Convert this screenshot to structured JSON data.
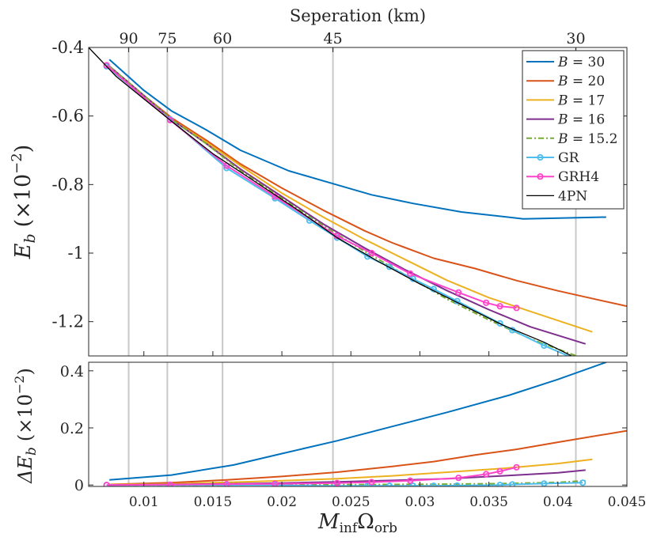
{
  "chart_data": [
    {
      "type": "line",
      "panel": "top",
      "top_axis_title": "Seperation (km)",
      "top_ticks": [
        "90",
        "75",
        "60",
        "45",
        "30"
      ],
      "top_tick_x": [
        0.0089,
        0.0117,
        0.0157,
        0.0237,
        0.0413
      ],
      "ylabel_main": "E",
      "ylabel_sub": "b",
      "ylabel_scale": "(×10",
      "ylabel_exp": "−2",
      "ylabel_close": ")",
      "xlim": [
        0.006,
        0.045
      ],
      "ylim": [
        -1.3,
        -0.4
      ],
      "y_ticks": [
        -0.4,
        -0.6,
        -0.8,
        -1.0,
        -1.2
      ],
      "y_tick_labels": [
        "-0.4",
        "-0.6",
        "-0.8",
        "-1",
        "-1.2"
      ],
      "legend_position": "top-right",
      "series": [
        {
          "name": "B = 30",
          "label_main": "B",
          "label_rest": " = 30",
          "color": "#0072BD",
          "style": "solid",
          "marker": "none",
          "x": [
            0.0075,
            0.01,
            0.012,
            0.0145,
            0.017,
            0.0205,
            0.0235,
            0.0265,
            0.0295,
            0.033,
            0.0375,
            0.0435
          ],
          "y": [
            -0.435,
            -0.525,
            -0.585,
            -0.64,
            -0.7,
            -0.76,
            -0.795,
            -0.83,
            -0.855,
            -0.88,
            -0.9,
            -0.895
          ]
        },
        {
          "name": "B = 20",
          "label_main": "B",
          "label_rest": " = 20",
          "color": "#D95319",
          "style": "solid",
          "marker": "none",
          "x": [
            0.0075,
            0.01,
            0.012,
            0.0145,
            0.017,
            0.02,
            0.023,
            0.026,
            0.028,
            0.031,
            0.034,
            0.037,
            0.04,
            0.045
          ],
          "y": [
            -0.455,
            -0.54,
            -0.605,
            -0.67,
            -0.74,
            -0.81,
            -0.875,
            -0.935,
            -0.97,
            -1.015,
            -1.045,
            -1.08,
            -1.11,
            -1.155
          ]
        },
        {
          "name": "B = 17",
          "label_main": "B",
          "label_rest": " = 17",
          "color": "#EDB120",
          "style": "solid",
          "marker": "none",
          "x": [
            0.0075,
            0.01,
            0.012,
            0.0145,
            0.017,
            0.02,
            0.023,
            0.026,
            0.029,
            0.032,
            0.035,
            0.038,
            0.0425
          ],
          "y": [
            -0.455,
            -0.54,
            -0.61,
            -0.675,
            -0.745,
            -0.825,
            -0.895,
            -0.96,
            -1.02,
            -1.08,
            -1.13,
            -1.17,
            -1.23
          ]
        },
        {
          "name": "B = 16",
          "label_main": "B",
          "label_rest": " = 16",
          "color": "#7E2F8E",
          "style": "solid",
          "marker": "none",
          "x": [
            0.0075,
            0.01,
            0.012,
            0.0145,
            0.017,
            0.02,
            0.023,
            0.026,
            0.029,
            0.032,
            0.035,
            0.038,
            0.042
          ],
          "y": [
            -0.455,
            -0.54,
            -0.61,
            -0.68,
            -0.755,
            -0.835,
            -0.915,
            -0.985,
            -1.05,
            -1.11,
            -1.165,
            -1.215,
            -1.265
          ]
        },
        {
          "name": "B = 15.2",
          "label_main": "B",
          "label_rest": " = 15.2",
          "color": "#77AC30",
          "style": "dashdot",
          "marker": "none",
          "x": [
            0.0075,
            0.01,
            0.012,
            0.0145,
            0.017,
            0.02,
            0.023,
            0.026,
            0.029,
            0.032,
            0.035,
            0.038,
            0.042
          ],
          "y": [
            -0.455,
            -0.54,
            -0.61,
            -0.68,
            -0.76,
            -0.84,
            -0.92,
            -0.995,
            -1.065,
            -1.135,
            -1.195,
            -1.25,
            -1.31
          ]
        },
        {
          "name": "GR",
          "label_main": "GR",
          "label_rest": "",
          "color": "#4DBEEE",
          "style": "solid",
          "marker": "circle",
          "x": [
            0.0073,
            0.0119,
            0.016,
            0.0195,
            0.022,
            0.024,
            0.0262,
            0.0278,
            0.0295,
            0.031,
            0.0327,
            0.0358,
            0.0367,
            0.039,
            0.0418
          ],
          "y": [
            -0.455,
            -0.61,
            -0.752,
            -0.84,
            -0.905,
            -0.955,
            -1.01,
            -1.04,
            -1.075,
            -1.105,
            -1.14,
            -1.205,
            -1.225,
            -1.27,
            -1.318
          ]
        },
        {
          "name": "GRH4",
          "label_main": "GRH4",
          "label_rest": "",
          "color": "#FF44CC",
          "style": "solid",
          "marker": "circle",
          "x": [
            0.0073,
            0.0119,
            0.016,
            0.0195,
            0.024,
            0.0265,
            0.0293,
            0.0328,
            0.0348,
            0.0358,
            0.037
          ],
          "y": [
            -0.452,
            -0.612,
            -0.745,
            -0.835,
            -0.95,
            -1.0,
            -1.06,
            -1.115,
            -1.145,
            -1.155,
            -1.16
          ]
        },
        {
          "name": "4PN",
          "label_main": "4PN",
          "label_rest": "",
          "color": "#000000",
          "style": "solid",
          "marker": "none",
          "x": [
            0.006,
            0.008,
            0.01,
            0.012,
            0.015,
            0.018,
            0.021,
            0.024,
            0.027,
            0.03,
            0.033,
            0.036,
            0.039,
            0.042
          ],
          "y": [
            -0.4,
            -0.485,
            -0.55,
            -0.615,
            -0.71,
            -0.79,
            -0.87,
            -0.955,
            -1.025,
            -1.09,
            -1.15,
            -1.21,
            -1.26,
            -1.32
          ]
        }
      ]
    },
    {
      "type": "line",
      "panel": "bottom",
      "ylabel_main": "ΔE",
      "ylabel_sub": "b",
      "ylabel_scale": "(×10",
      "ylabel_exp": "−2",
      "ylabel_close": ")",
      "xlabel_main": "M",
      "xlabel_sub1": "inf",
      "xlabel_omega": "Ω",
      "xlabel_sub2": "orb",
      "xlim": [
        0.006,
        0.045
      ],
      "ylim": [
        -0.005,
        0.43
      ],
      "x_ticks": [
        0.01,
        0.015,
        0.02,
        0.025,
        0.03,
        0.035,
        0.04,
        0.045
      ],
      "x_tick_labels": [
        "0.01",
        "0.015",
        "0.02",
        "0.025",
        "0.03",
        "0.035",
        "0.04",
        "0.045"
      ],
      "y_ticks": [
        0,
        0.2,
        0.4
      ],
      "y_tick_labels": [
        "0",
        "0.2",
        "0.4"
      ],
      "series": [
        {
          "name": "B = 30",
          "color": "#0072BD",
          "style": "solid",
          "marker": "none",
          "x": [
            0.0075,
            0.012,
            0.0165,
            0.02,
            0.024,
            0.028,
            0.032,
            0.0365,
            0.04,
            0.0435
          ],
          "y": [
            0.018,
            0.035,
            0.07,
            0.11,
            0.155,
            0.205,
            0.255,
            0.315,
            0.37,
            0.43
          ]
        },
        {
          "name": "B = 20",
          "color": "#D95319",
          "style": "solid",
          "marker": "none",
          "x": [
            0.0075,
            0.012,
            0.016,
            0.02,
            0.024,
            0.028,
            0.031,
            0.034,
            0.037,
            0.04,
            0.045
          ],
          "y": [
            0.002,
            0.008,
            0.018,
            0.03,
            0.045,
            0.065,
            0.082,
            0.105,
            0.125,
            0.15,
            0.19
          ]
        },
        {
          "name": "B = 17",
          "color": "#EDB120",
          "style": "solid",
          "marker": "none",
          "x": [
            0.0075,
            0.012,
            0.016,
            0.02,
            0.024,
            0.028,
            0.032,
            0.036,
            0.04,
            0.0425
          ],
          "y": [
            0.001,
            0.004,
            0.009,
            0.015,
            0.022,
            0.032,
            0.045,
            0.058,
            0.075,
            0.09
          ]
        },
        {
          "name": "B = 16",
          "color": "#7E2F8E",
          "style": "solid",
          "marker": "none",
          "x": [
            0.0075,
            0.012,
            0.016,
            0.02,
            0.024,
            0.028,
            0.032,
            0.036,
            0.04,
            0.042
          ],
          "y": [
            0.0,
            0.002,
            0.004,
            0.007,
            0.011,
            0.016,
            0.022,
            0.032,
            0.043,
            0.052
          ]
        },
        {
          "name": "B = 15.2",
          "color": "#77AC30",
          "style": "dashdot",
          "marker": "none",
          "x": [
            0.0075,
            0.012,
            0.016,
            0.02,
            0.024,
            0.028,
            0.032,
            0.036,
            0.04,
            0.042
          ],
          "y": [
            0.0,
            0.0,
            0.0,
            0.001,
            0.001,
            0.002,
            0.003,
            0.005,
            0.009,
            0.015
          ]
        },
        {
          "name": "GR",
          "color": "#4DBEEE",
          "style": "solid",
          "marker": "circle",
          "x": [
            0.0073,
            0.0119,
            0.016,
            0.0195,
            0.022,
            0.024,
            0.0262,
            0.0278,
            0.0295,
            0.031,
            0.0327,
            0.0358,
            0.0367,
            0.039,
            0.0418
          ],
          "y": [
            0.0,
            0.0,
            0.0,
            0.0,
            -0.003,
            -0.003,
            -0.003,
            -0.003,
            -0.003,
            -0.003,
            -0.002,
            0.0,
            0.002,
            0.005,
            0.008
          ]
        },
        {
          "name": "GRH4",
          "color": "#FF44CC",
          "style": "solid",
          "marker": "circle",
          "x": [
            0.0073,
            0.0119,
            0.016,
            0.0195,
            0.024,
            0.0265,
            0.0293,
            0.0328,
            0.0348,
            0.0358,
            0.037
          ],
          "y": [
            0.0,
            0.001,
            0.003,
            0.004,
            0.007,
            0.01,
            0.015,
            0.025,
            0.038,
            0.048,
            0.062
          ]
        }
      ]
    }
  ]
}
